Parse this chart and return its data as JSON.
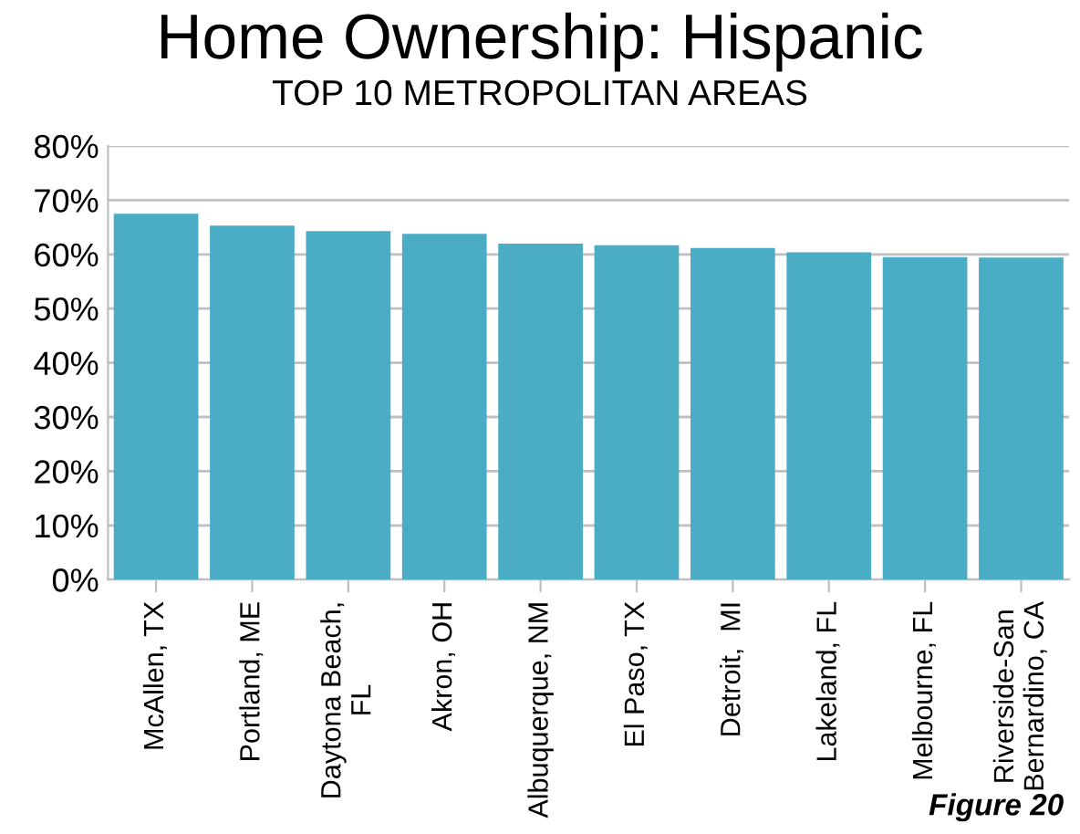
{
  "chart_data": {
    "type": "bar",
    "title": "Home Ownership: Hispanic",
    "subtitle": "TOP 10 METROPOLITAN AREAS",
    "categories": [
      "McAllen, TX",
      "Portland, ME",
      "Daytona Beach,\nFL",
      "Akron, OH",
      "Albuquerque, NM",
      "El Paso, TX",
      "Detroit,  MI",
      "Lakeland, FL",
      "Melbourne, FL",
      "Riverside-San\nBernardino, CA"
    ],
    "values": [
      67.5,
      65.3,
      64.3,
      63.8,
      62.0,
      61.7,
      61.2,
      60.4,
      59.5,
      59.4
    ],
    "color": "#4bacc6",
    "ylim": [
      0,
      80
    ],
    "yticks": [
      {
        "value": 0,
        "label": "0%"
      },
      {
        "value": 10,
        "label": "10%"
      },
      {
        "value": 20,
        "label": "20%"
      },
      {
        "value": 30,
        "label": "30%"
      },
      {
        "value": 40,
        "label": "40%"
      },
      {
        "value": 50,
        "label": "50%"
      },
      {
        "value": 60,
        "label": "60%"
      },
      {
        "value": 70,
        "label": "70%"
      },
      {
        "value": 80,
        "label": "80%"
      }
    ],
    "grid": "y",
    "legend": false,
    "annotations": [
      "Figure 20"
    ]
  }
}
